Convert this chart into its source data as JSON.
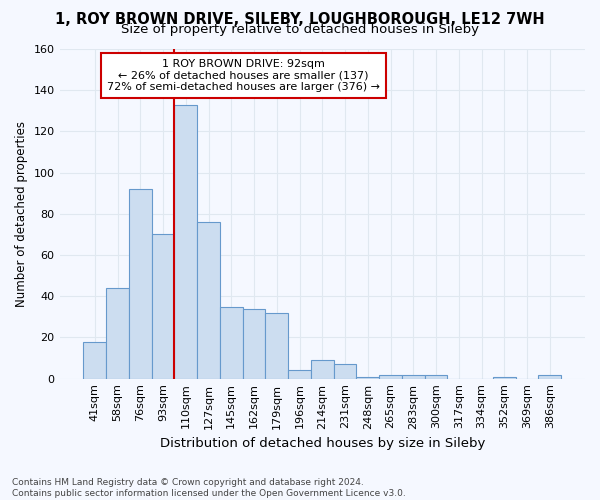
{
  "title": "1, ROY BROWN DRIVE, SILEBY, LOUGHBOROUGH, LE12 7WH",
  "subtitle": "Size of property relative to detached houses in Sileby",
  "xlabel": "Distribution of detached houses by size in Sileby",
  "ylabel": "Number of detached properties",
  "bar_color": "#ccddf0",
  "bar_edge_color": "#6699cc",
  "bar_labels": [
    "41sqm",
    "58sqm",
    "76sqm",
    "93sqm",
    "110sqm",
    "127sqm",
    "145sqm",
    "162sqm",
    "179sqm",
    "196sqm",
    "214sqm",
    "231sqm",
    "248sqm",
    "265sqm",
    "283sqm",
    "300sqm",
    "317sqm",
    "334sqm",
    "352sqm",
    "369sqm",
    "386sqm"
  ],
  "bar_values": [
    18,
    44,
    92,
    70,
    133,
    76,
    35,
    34,
    32,
    4,
    9,
    7,
    1,
    2,
    2,
    2,
    0,
    0,
    1,
    0,
    2
  ],
  "ylim": [
    0,
    160
  ],
  "yticks": [
    0,
    20,
    40,
    60,
    80,
    100,
    120,
    140,
    160
  ],
  "property_line_index": 3,
  "annotation_line1": "1 ROY BROWN DRIVE: 92sqm",
  "annotation_line2": "← 26% of detached houses are smaller (137)",
  "annotation_line3": "72% of semi-detached houses are larger (376) →",
  "annotation_box_color": "#ffffff",
  "annotation_box_edge": "#cc0000",
  "property_line_color": "#cc0000",
  "footer": "Contains HM Land Registry data © Crown copyright and database right 2024.\nContains public sector information licensed under the Open Government Licence v3.0.",
  "bg_color": "#f5f8ff",
  "plot_bg_color": "#f5f8ff",
  "grid_color": "#e0e8f0",
  "title_fontsize": 10.5,
  "subtitle_fontsize": 9.5
}
